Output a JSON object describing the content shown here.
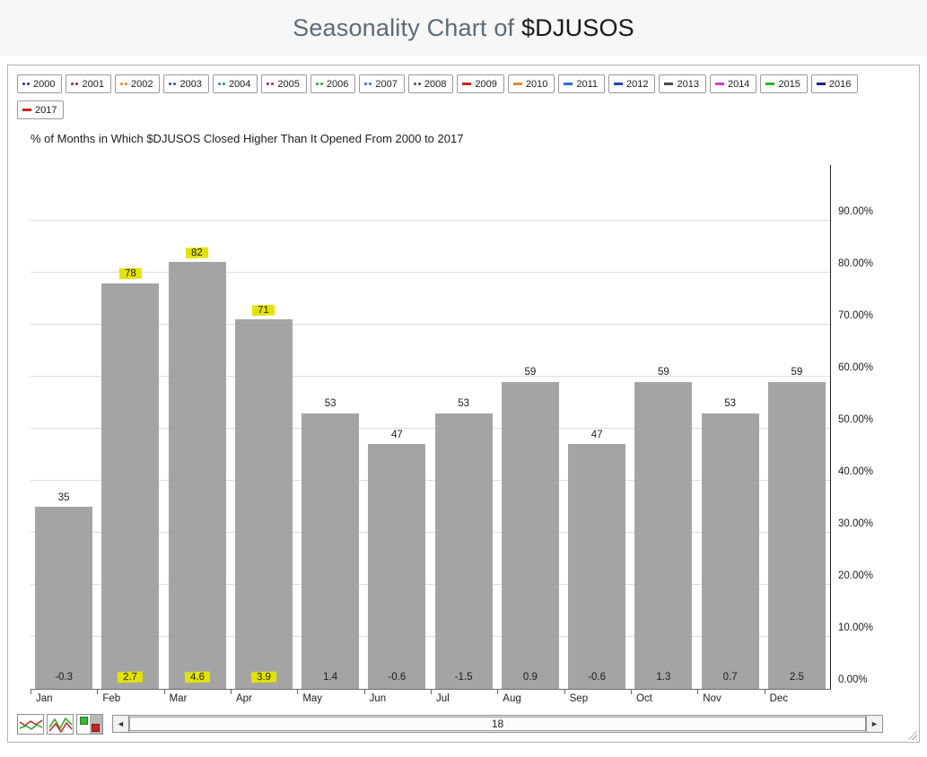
{
  "header": {
    "title_prefix": "Seasonality Chart of ",
    "title_symbol": "$DJUSOS"
  },
  "legend": {
    "years": [
      {
        "label": "2000",
        "color": "#2c2ca0",
        "marker": "dots"
      },
      {
        "label": "2001",
        "color": "#8f2a2a",
        "marker": "dots"
      },
      {
        "label": "2002",
        "color": "#e08a2e",
        "marker": "dots"
      },
      {
        "label": "2003",
        "color": "#2e4fa0",
        "marker": "dots"
      },
      {
        "label": "2004",
        "color": "#2e8a8a",
        "marker": "dots"
      },
      {
        "label": "2005",
        "color": "#7a2ea0",
        "marker": "dots"
      },
      {
        "label": "2006",
        "color": "#2ea02e",
        "marker": "dots"
      },
      {
        "label": "2007",
        "color": "#2e6ae0",
        "marker": "dots"
      },
      {
        "label": "2008",
        "color": "#4a4a4a",
        "marker": "dots"
      },
      {
        "label": "2009",
        "color": "#d02020",
        "marker": "dash"
      },
      {
        "label": "2010",
        "color": "#e08a2e",
        "marker": "dash"
      },
      {
        "label": "2011",
        "color": "#2e6ae0",
        "marker": "dash"
      },
      {
        "label": "2012",
        "color": "#2048c0",
        "marker": "dash"
      },
      {
        "label": "2013",
        "color": "#4a4a4a",
        "marker": "dash"
      },
      {
        "label": "2014",
        "color": "#d040d0",
        "marker": "dash"
      },
      {
        "label": "2015",
        "color": "#28b428",
        "marker": "dash"
      },
      {
        "label": "2016",
        "color": "#202090",
        "marker": "dash"
      },
      {
        "label": "2017",
        "color": "#d02020",
        "marker": "dash"
      }
    ]
  },
  "chart_data": {
    "type": "bar",
    "title": "% of Months in Which $DJUSOS Closed Higher Than It Opened From 2000 to 2017",
    "categories": [
      "Jan",
      "Feb",
      "Mar",
      "Apr",
      "May",
      "Jun",
      "Jul",
      "Aug",
      "Sep",
      "Oct",
      "Nov",
      "Dec"
    ],
    "series": [
      {
        "name": "percent_closed_higher",
        "values": [
          35,
          78,
          82,
          71,
          53,
          47,
          53,
          59,
          47,
          59,
          53,
          59
        ]
      },
      {
        "name": "average_percent_change",
        "values": [
          -0.3,
          2.7,
          4.6,
          3.9,
          1.4,
          -0.6,
          -1.5,
          0.9,
          -0.6,
          1.3,
          0.7,
          2.5
        ]
      }
    ],
    "highlighted_categories": [
      "Feb",
      "Mar",
      "Apr"
    ],
    "xlabel": "",
    "ylabel": "",
    "ylim": [
      0,
      100
    ],
    "ytick_labels": [
      "0.00%",
      "10.00%",
      "20.00%",
      "30.00%",
      "40.00%",
      "50.00%",
      "60.00%",
      "70.00%",
      "80.00%",
      "90.00%"
    ],
    "grid": true,
    "legend_position": "top",
    "y_axis_position": "right",
    "bar_color": "#a4a4a4",
    "highlight_color": "#e3e302"
  },
  "toolbar": {
    "scrollbar": {
      "value": "18",
      "left_arrow": "◄",
      "right_arrow": "►"
    }
  }
}
